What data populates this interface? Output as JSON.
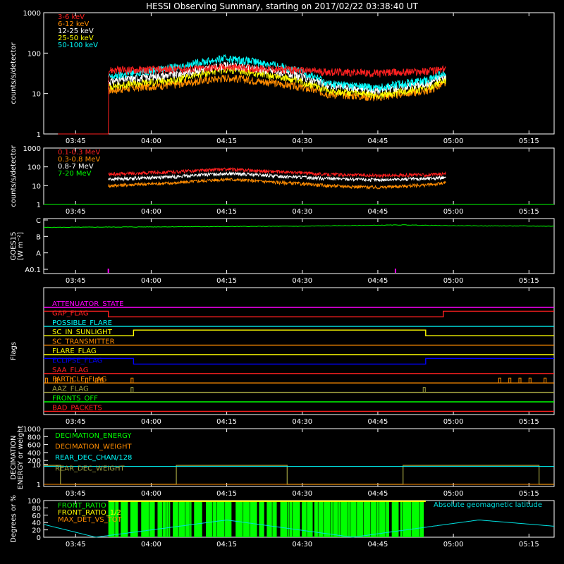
{
  "title": "HESSI Observing Summary, starting on 2017/02/22 03:38:40 UT",
  "colors": {
    "background": "#000000",
    "axes": "#ffffff",
    "red": "#ff2020",
    "orange": "#ff8c00",
    "yellow": "#ffff00",
    "green": "#00ff00",
    "cyan": "#00ffff",
    "magenta": "#ff00ff",
    "blue": "#0000ff",
    "olive": "#a0a040",
    "light_green": "#40ff40",
    "teal": "#00e0e0"
  },
  "time_ticks": [
    "03:45",
    "04:00",
    "04:15",
    "04:30",
    "04:45",
    "05:00",
    "05:15"
  ],
  "chart_data": [
    {
      "id": "xray_low",
      "type": "line",
      "ylabel": "counts/s/detector",
      "yscale": "log",
      "yticks": [
        "1",
        "10",
        "100",
        "1000"
      ],
      "ylim": [
        1,
        1000
      ],
      "xlim": [
        "03:38:40",
        "05:20:00"
      ],
      "legend_placement": "top-left",
      "series": [
        {
          "name": "3-6 keV",
          "color": "#ff2020",
          "x": [
            "03:41:30",
            "03:41:30",
            "03:51:30",
            "03:51:30",
            "04:05",
            "04:15",
            "04:25",
            "04:35",
            "04:45",
            "04:55",
            "04:58:30",
            "04:58:30"
          ],
          "values": [
            1,
            1,
            1,
            38,
            40,
            45,
            40,
            35,
            32,
            36,
            40,
            1
          ]
        },
        {
          "name": "6-12 keV",
          "color": "#ff8c00",
          "x": [
            "03:51:30",
            "03:51:30",
            "04:05",
            "04:15",
            "04:25",
            "04:35",
            "04:45",
            "04:55",
            "04:58:30",
            "04:58:30"
          ],
          "values": [
            1,
            12,
            17,
            25,
            18,
            10,
            8,
            12,
            18,
            1
          ]
        },
        {
          "name": "12-25 keV",
          "color": "#ffffff",
          "x": [
            "03:51:30",
            "03:51:30",
            "04:05",
            "04:15",
            "04:25",
            "04:35",
            "04:45",
            "04:55",
            "04:58:30",
            "04:58:30"
          ],
          "values": [
            1,
            20,
            30,
            50,
            35,
            16,
            12,
            18,
            28,
            1
          ]
        },
        {
          "name": "25-50 keV",
          "color": "#ffff00",
          "x": [
            "03:51:30",
            "03:51:30",
            "04:05",
            "04:15",
            "04:25",
            "04:35",
            "04:45",
            "04:55",
            "04:58:30",
            "04:58:30"
          ],
          "values": [
            1,
            15,
            22,
            40,
            27,
            12,
            9,
            14,
            22,
            1
          ]
        },
        {
          "name": "50-100 keV",
          "color": "#00ffff",
          "x": [
            "03:51:30",
            "03:51:30",
            "04:05",
            "04:15",
            "04:25",
            "04:35",
            "04:45",
            "04:55",
            "04:58:30",
            "04:58:30"
          ],
          "values": [
            1,
            25,
            45,
            75,
            50,
            18,
            14,
            22,
            35,
            1
          ]
        }
      ]
    },
    {
      "id": "gamma",
      "type": "line",
      "ylabel": "counts/s/detector",
      "yscale": "log",
      "yticks": [
        "1",
        "10",
        "100",
        "1000"
      ],
      "ylim": [
        1,
        1000
      ],
      "legend_placement": "top-left",
      "series": [
        {
          "name": "0.1-0.3 MeV",
          "color": "#ff2020",
          "x": [
            "03:51:30",
            "03:51:30",
            "04:05",
            "04:15",
            "04:25",
            "04:35",
            "04:45",
            "04:55",
            "04:58:30",
            "04:58:30"
          ],
          "values": [
            1,
            40,
            55,
            75,
            55,
            40,
            35,
            38,
            42,
            1
          ]
        },
        {
          "name": "0.3-0.8 MeV",
          "color": "#ff8c00",
          "x": [
            "03:51:30",
            "03:51:30",
            "04:05",
            "04:15",
            "04:25",
            "04:35",
            "04:45",
            "04:55",
            "04:58:30",
            "04:58:30"
          ],
          "values": [
            1,
            10,
            14,
            22,
            15,
            10,
            8,
            11,
            14,
            1
          ]
        },
        {
          "name": "0.8-7 MeV",
          "color": "#ffffff",
          "x": [
            "03:51:30",
            "03:51:30",
            "04:05",
            "04:15",
            "04:25",
            "04:35",
            "04:45",
            "04:55",
            "04:58:30",
            "04:58:30"
          ],
          "values": [
            1,
            22,
            30,
            45,
            32,
            24,
            20,
            24,
            28,
            1
          ]
        },
        {
          "name": "7-20 MeV",
          "color": "#00ff00",
          "x": [
            "03:38:40",
            "05:20:00"
          ],
          "values": [
            1,
            1
          ]
        }
      ]
    },
    {
      "id": "goes",
      "type": "line",
      "ylabel": "GOES15",
      "ylabel2": "[W m⁻²]",
      "yticks": [
        "A0.1",
        "A",
        "B",
        "C"
      ],
      "legend_placement": "none",
      "series": [
        {
          "name": "",
          "color": "#00ff00",
          "x": [
            "03:38:40",
            "04:00",
            "04:30",
            "04:50",
            "05:00",
            "05:20:00"
          ],
          "level": [
            2.55,
            2.58,
            2.62,
            2.7,
            2.65,
            2.62
          ]
        },
        {
          "name": "",
          "color": "#ff00ff",
          "type": "spikes",
          "x": [
            "03:51:30",
            "04:48:30"
          ],
          "level": [
            0.3,
            0.3
          ]
        }
      ]
    },
    {
      "id": "flags",
      "type": "step",
      "ylabel": "Flags",
      "legend_placement": "inline",
      "series": [
        {
          "name": "ATTENUATOR_STATE",
          "color": "#ff00ff",
          "x": [
            "03:38:40",
            "05:20:00"
          ],
          "values": [
            0,
            0
          ]
        },
        {
          "name": "GAP_FLAG",
          "color": "#ff2020",
          "x": [
            "03:38:40",
            "03:51:30",
            "03:51:30",
            "04:58:00",
            "04:58:00",
            "05:20:00"
          ],
          "values": [
            1,
            1,
            0,
            0,
            1,
            1
          ]
        },
        {
          "name": "POSSIBLE_FLARE",
          "color": "#00ffff",
          "x": [
            "03:38:40",
            "05:20:00"
          ],
          "values": [
            0,
            0
          ]
        },
        {
          "name": "SC_IN_SUNLIGHT",
          "color": "#ffff00",
          "x": [
            "03:38:40",
            "03:56:30",
            "03:56:30",
            "04:54:30",
            "04:54:30",
            "05:20:00"
          ],
          "values": [
            0,
            0,
            1,
            1,
            0,
            0
          ]
        },
        {
          "name": "SC_TRANSMITTER",
          "color": "#ff8c00",
          "x": [
            "03:38:40",
            "05:20:00"
          ],
          "values": [
            0,
            0
          ]
        },
        {
          "name": "FLARE_FLAG",
          "color": "#ffff00",
          "x": [
            "03:38:40",
            "05:20:00"
          ],
          "values": [
            0,
            0
          ]
        },
        {
          "name": "ECLIPSE_FLAG",
          "color": "#0000ff",
          "x": [
            "03:38:40",
            "03:56:30",
            "03:56:30",
            "04:54:30",
            "04:54:30",
            "05:20:00"
          ],
          "values": [
            1,
            1,
            0,
            0,
            1,
            1
          ]
        },
        {
          "name": "SAA_FLAG",
          "color": "#ff2020",
          "x": [
            "03:38:40",
            "05:20:00"
          ],
          "values": [
            0,
            0
          ]
        },
        {
          "name": "PARTICLE_FLAG",
          "color": "#ff8c00",
          "x": [
            "03:38:40",
            "05:20:00"
          ],
          "values": [
            0,
            0
          ],
          "blips": [
            "03:39",
            "03:41",
            "03:44",
            "03:47",
            "03:49",
            "03:50",
            "03:56",
            "05:09",
            "05:11",
            "05:13",
            "05:15",
            "05:18"
          ]
        },
        {
          "name": "AAZ_FLAG",
          "color": "#a0a040",
          "x": [
            "03:38:40",
            "05:20:00"
          ],
          "values": [
            0,
            0
          ],
          "blips": [
            "03:56",
            "04:54"
          ]
        },
        {
          "name": "FRONTS_OFF",
          "color": "#00ff00",
          "x": [
            "03:38:40",
            "05:20:00"
          ],
          "values": [
            0,
            0
          ]
        },
        {
          "name": "BAD_PACKETS",
          "color": "#ff2020",
          "x": [
            "03:38:40",
            "05:20:00"
          ],
          "values": [
            0,
            0
          ]
        }
      ]
    },
    {
      "id": "decimation",
      "type": "step",
      "ylabel": "DECIMATION",
      "ylabel2": "ENERGY or weight",
      "yscale": "linear",
      "yticks": [
        "1",
        "10",
        "100",
        "200",
        "400",
        "600",
        "800",
        "1000"
      ],
      "legend_placement": "top-left",
      "series": [
        {
          "name": "DECIMATION_ENERGY",
          "color": "#00ff00",
          "x": [
            "03:38:40",
            "05:20:00"
          ],
          "values": [
            0,
            0
          ]
        },
        {
          "name": "DECIMATION_WEIGHT",
          "color": "#ff8c00",
          "x": [
            "03:38:40",
            "05:20:00"
          ],
          "values": [
            0,
            0
          ]
        },
        {
          "name": "REAR_DEC_CHAN/128",
          "color": "#00ffff",
          "x": [
            "03:38:40",
            "05:20:00"
          ],
          "values": [
            0,
            0
          ]
        },
        {
          "name": "REAR_DEC_WEIGHT",
          "color": "#a0a040",
          "x": [
            "03:38:40",
            "03:42",
            "03:42",
            "04:05",
            "04:05",
            "04:27",
            "04:27",
            "04:50",
            "04:50",
            "05:17",
            "05:17",
            "05:20:00"
          ],
          "values": [
            9,
            9,
            1,
            1,
            9,
            9,
            1,
            1,
            9,
            9,
            1,
            1
          ]
        }
      ]
    },
    {
      "id": "ratios",
      "type": "line",
      "ylabel": "Degrees or %",
      "yticks": [
        "0",
        "20",
        "40",
        "60",
        "80",
        "100"
      ],
      "ylim": [
        0,
        100
      ],
      "legend_placement": "top-left",
      "annotation": "Absolute geomagnetic latitude",
      "series": [
        {
          "name": "FRONT_RATIO",
          "color": "#00ff00",
          "type": "bars",
          "x_start": "03:51:30",
          "x_end": "04:54:30"
        },
        {
          "name": "FRONT_RATIO_1/2",
          "color": "#ffff00",
          "x": [
            "03:51:30",
            "04:54:30"
          ],
          "values": [
            100,
            100
          ]
        },
        {
          "name": "MAX_DET_VS_TOT",
          "color": "#ff8c00",
          "x": [
            "03:38:40",
            "05:20:00"
          ],
          "values": [
            0,
            0
          ]
        },
        {
          "name": "",
          "color": "#00e0e0",
          "x": [
            "03:38:40",
            "03:49",
            "04:15",
            "04:40",
            "05:05",
            "05:20:00"
          ],
          "values": [
            35,
            0,
            47,
            0,
            47,
            30
          ]
        }
      ]
    }
  ]
}
